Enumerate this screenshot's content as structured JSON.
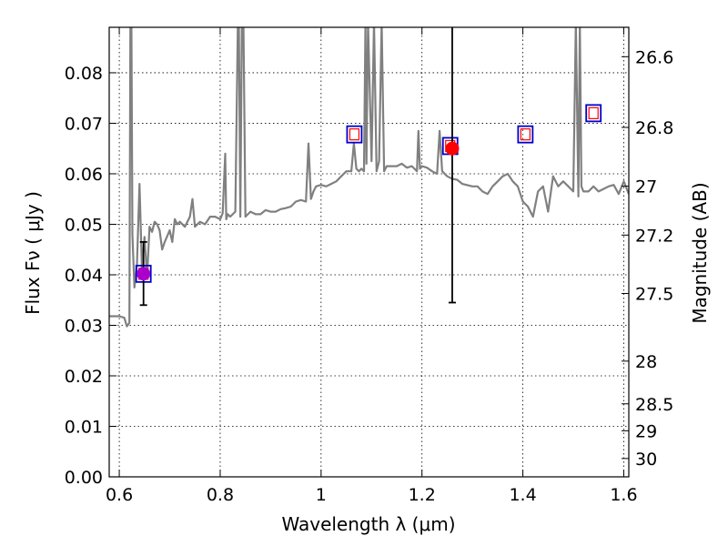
{
  "chart_data": {
    "type": "line",
    "title": "",
    "xlabel": "Wavelength  λ (μm)",
    "ylabel": "Flux  Fν  ( μJy )",
    "y2label": "Magnitude (AB)",
    "xlim": [
      0.58,
      1.61
    ],
    "ylim": [
      0.0,
      0.089
    ],
    "grid": true,
    "x_ticks": [
      0.6,
      0.8,
      1.0,
      1.2,
      1.4,
      1.6
    ],
    "x_tick_labels": [
      "0.6",
      "0.8",
      "1",
      "1.2",
      "1.4",
      "1.6"
    ],
    "y_ticks": [
      0.0,
      0.01,
      0.02,
      0.03,
      0.04,
      0.05,
      0.06,
      0.07,
      0.08
    ],
    "y_tick_labels": [
      "0.00",
      "0.01",
      "0.02",
      "0.03",
      "0.04",
      "0.05",
      "0.06",
      "0.07",
      "0.08"
    ],
    "y2_ticks": [
      26.6,
      26.8,
      27,
      27.2,
      27.5,
      28,
      28.5,
      29,
      30
    ],
    "y2_tick_labels": [
      "26.6",
      "26.8",
      "27",
      "27.2",
      "27.5",
      "28",
      "28.5",
      "29",
      "30"
    ],
    "colors": {
      "spectrum": "#808080",
      "model_box_outer": "#0000cc",
      "model_box_inner": "#ff0000",
      "observed": "#ff0000",
      "observed_overlap": "#aa00cc",
      "error_bar": "#000000"
    },
    "series": [
      {
        "kind": "spectrum",
        "x": [
          0.58,
          0.6,
          0.61,
          0.615,
          0.62,
          0.622,
          0.624,
          0.626,
          0.63,
          0.635,
          0.64,
          0.645,
          0.65,
          0.655,
          0.66,
          0.665,
          0.67,
          0.675,
          0.68,
          0.685,
          0.69,
          0.7,
          0.705,
          0.71,
          0.715,
          0.72,
          0.73,
          0.74,
          0.745,
          0.75,
          0.76,
          0.77,
          0.78,
          0.79,
          0.8,
          0.805,
          0.81,
          0.812,
          0.815,
          0.82,
          0.83,
          0.835,
          0.837,
          0.84,
          0.843,
          0.846,
          0.85,
          0.86,
          0.87,
          0.88,
          0.89,
          0.9,
          0.91,
          0.92,
          0.93,
          0.94,
          0.95,
          0.96,
          0.97,
          0.975,
          0.98,
          0.985,
          0.99,
          1.0,
          1.01,
          1.02,
          1.03,
          1.04,
          1.05,
          1.06,
          1.065,
          1.07,
          1.075,
          1.08,
          1.085,
          1.088,
          1.09,
          1.093,
          1.1,
          1.105,
          1.11,
          1.115,
          1.12,
          1.125,
          1.13,
          1.14,
          1.15,
          1.16,
          1.17,
          1.18,
          1.19,
          1.193,
          1.196,
          1.2,
          1.21,
          1.22,
          1.23,
          1.235,
          1.24,
          1.25,
          1.26,
          1.27,
          1.28,
          1.3,
          1.31,
          1.32,
          1.33,
          1.34,
          1.35,
          1.36,
          1.37,
          1.38,
          1.39,
          1.4,
          1.41,
          1.42,
          1.43,
          1.44,
          1.45,
          1.46,
          1.47,
          1.48,
          1.49,
          1.5,
          1.505,
          1.51,
          1.513,
          1.516,
          1.52,
          1.53,
          1.54,
          1.55,
          1.56,
          1.57,
          1.58,
          1.59,
          1.6,
          1.61
        ],
        "y": [
          0.0318,
          0.0318,
          0.0315,
          0.0298,
          0.0305,
          0.09,
          0.09,
          0.048,
          0.0375,
          0.042,
          0.058,
          0.041,
          0.0475,
          0.0395,
          0.0495,
          0.0485,
          0.0505,
          0.05,
          0.0488,
          0.045,
          0.0465,
          0.0488,
          0.0465,
          0.051,
          0.05,
          0.0505,
          0.0495,
          0.0515,
          0.055,
          0.0495,
          0.0505,
          0.05,
          0.0515,
          0.0515,
          0.051,
          0.0522,
          0.064,
          0.051,
          0.052,
          0.0515,
          0.0525,
          0.09,
          0.09,
          0.0515,
          0.09,
          0.09,
          0.0515,
          0.0525,
          0.052,
          0.052,
          0.0528,
          0.0525,
          0.0525,
          0.053,
          0.0532,
          0.0535,
          0.0545,
          0.0548,
          0.0545,
          0.066,
          0.055,
          0.0565,
          0.0575,
          0.0578,
          0.0575,
          0.058,
          0.0585,
          0.0595,
          0.0605,
          0.0605,
          0.066,
          0.061,
          0.0605,
          0.061,
          0.0605,
          0.09,
          0.062,
          0.09,
          0.0625,
          0.09,
          0.0605,
          0.0625,
          0.09,
          0.0605,
          0.0615,
          0.0615,
          0.0615,
          0.062,
          0.0612,
          0.0615,
          0.0605,
          0.0685,
          0.061,
          0.0615,
          0.0612,
          0.0605,
          0.06,
          0.0685,
          0.0605,
          0.0595,
          0.059,
          0.0588,
          0.058,
          0.0575,
          0.0575,
          0.0565,
          0.056,
          0.0575,
          0.0585,
          0.0595,
          0.06,
          0.0585,
          0.0575,
          0.0545,
          0.0535,
          0.0515,
          0.0565,
          0.0575,
          0.0525,
          0.0595,
          0.0575,
          0.0585,
          0.0575,
          0.0565,
          0.09,
          0.0555,
          0.09,
          0.0575,
          0.0565,
          0.0565,
          0.0575,
          0.0565,
          0.057,
          0.0575,
          0.0578,
          0.056,
          0.0585,
          0.056
        ]
      },
      {
        "kind": "model_boxes",
        "x": [
          0.648,
          1.066,
          1.256,
          1.405,
          1.54
        ],
        "y": [
          0.0402,
          0.0678,
          0.0655,
          0.0678,
          0.072
        ]
      },
      {
        "kind": "observed",
        "x": [
          0.648,
          1.26
        ],
        "y": [
          0.0402,
          0.065
        ],
        "yerr_low": [
          0.034,
          0.0345
        ],
        "yerr_high": [
          0.0465,
          0.089
        ]
      }
    ]
  }
}
